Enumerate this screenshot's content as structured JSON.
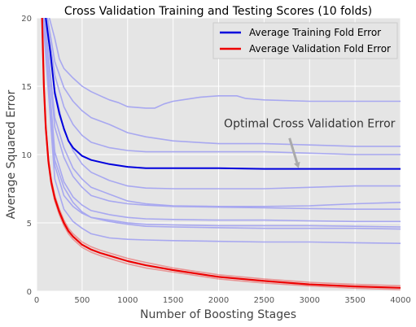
{
  "chart_data": {
    "type": "line",
    "title": "Cross Validation Training and Testing Scores (10 folds)",
    "xlabel": "Number of Boosting Stages",
    "ylabel": "Average Squared Error",
    "xlim": [
      0,
      4000
    ],
    "ylim": [
      0,
      20
    ],
    "x_ticks": [
      "0",
      "500",
      "1000",
      "1500",
      "2000",
      "2500",
      "3000",
      "3500",
      "4000"
    ],
    "y_ticks": [
      "0",
      "5",
      "10",
      "15",
      "20"
    ],
    "grid": true,
    "legend_position": "top-right",
    "legend": [
      {
        "label": "Average Training Fold Error",
        "color": "#0000dd"
      },
      {
        "label": "Average Validation Fold Error",
        "color": "#ee0000"
      }
    ],
    "annotation": {
      "text": "Optimal Cross Validation Error",
      "text_at": [
        3000,
        12
      ],
      "arrow_from": [
        2780,
        11.2
      ],
      "arrow_to": [
        2880,
        9.0
      ]
    },
    "colors": {
      "background": "#e5e5e5",
      "grid": "#ffffff",
      "fold_lines": "#a8a8f0",
      "training": "#0000dd",
      "validation": "#ee0000",
      "arrow": "#aaaaaa"
    },
    "series": [
      {
        "name": "Average Training Fold Error",
        "role": "training",
        "x": [
          100,
          150,
          200,
          250,
          300,
          350,
          400,
          500,
          600,
          800,
          1000,
          1200,
          1500,
          2000,
          2500,
          3000,
          3500,
          4000
        ],
        "values": [
          20,
          17.5,
          14.5,
          13.0,
          11.9,
          11.0,
          10.5,
          9.9,
          9.6,
          9.3,
          9.1,
          9.0,
          9.0,
          9.0,
          8.95,
          8.95,
          8.95,
          8.95
        ]
      },
      {
        "name": "Average Validation Fold Error",
        "role": "validation",
        "x": [
          60,
          80,
          100,
          130,
          160,
          200,
          250,
          300,
          350,
          400,
          500,
          600,
          700,
          800,
          1000,
          1200,
          1500,
          2000,
          2500,
          3000,
          3500,
          4000
        ],
        "values": [
          20,
          15,
          12,
          9.5,
          8.0,
          6.8,
          5.8,
          5.0,
          4.4,
          4.0,
          3.4,
          3.05,
          2.8,
          2.6,
          2.2,
          1.9,
          1.55,
          1.05,
          0.75,
          0.5,
          0.35,
          0.25
        ]
      },
      {
        "role": "validation-fold",
        "x": [
          60,
          80,
          100,
          130,
          160,
          200,
          250,
          300,
          350,
          400,
          500,
          600,
          700,
          800,
          1000,
          1200,
          1500,
          2000,
          2500,
          3000,
          3500,
          4000
        ],
        "values": [
          20,
          15.2,
          12.2,
          9.7,
          8.2,
          7.0,
          6.0,
          5.2,
          4.6,
          4.2,
          3.6,
          3.25,
          3.0,
          2.8,
          2.4,
          2.1,
          1.7,
          1.2,
          0.9,
          0.65,
          0.5,
          0.4
        ]
      },
      {
        "role": "validation-fold",
        "x": [
          60,
          80,
          100,
          130,
          160,
          200,
          250,
          300,
          350,
          400,
          500,
          600,
          700,
          800,
          1000,
          1200,
          1500,
          2000,
          2500,
          3000,
          3500,
          4000
        ],
        "values": [
          20,
          14.8,
          11.8,
          9.3,
          7.8,
          6.6,
          5.6,
          4.8,
          4.2,
          3.8,
          3.2,
          2.85,
          2.6,
          2.4,
          2.0,
          1.7,
          1.4,
          0.9,
          0.6,
          0.38,
          0.22,
          0.12
        ]
      },
      {
        "role": "training-fold",
        "x": [
          140,
          200,
          250,
          300,
          400,
          500,
          600,
          700,
          800,
          900,
          1000,
          1200,
          1300,
          1400,
          1500,
          1600,
          1800,
          2000,
          2200,
          2300,
          2500,
          3000,
          3500,
          4000
        ],
        "values": [
          20,
          18.5,
          17.0,
          16.3,
          15.6,
          15.0,
          14.6,
          14.3,
          14.0,
          13.8,
          13.5,
          13.4,
          13.4,
          13.7,
          13.9,
          14.0,
          14.2,
          14.3,
          14.3,
          14.1,
          14.0,
          13.9,
          13.9,
          13.9
        ]
      },
      {
        "role": "training-fold",
        "x": [
          120,
          200,
          300,
          400,
          500,
          600,
          800,
          1000,
          1200,
          1500,
          2000,
          2500,
          3000,
          3500,
          4000
        ],
        "values": [
          20,
          16.8,
          14.9,
          13.9,
          13.2,
          12.7,
          12.2,
          11.6,
          11.3,
          11.0,
          10.8,
          10.8,
          10.7,
          10.6,
          10.6
        ]
      },
      {
        "role": "training-fold",
        "x": [
          110,
          200,
          300,
          400,
          500,
          600,
          800,
          1000,
          1200,
          1500,
          2000,
          2500,
          3000,
          3500,
          4000
        ],
        "values": [
          20,
          15.8,
          13.5,
          12.2,
          11.4,
          10.9,
          10.5,
          10.3,
          10.2,
          10.2,
          10.2,
          10.2,
          10.1,
          10.0,
          10.0
        ]
      },
      {
        "role": "training-fold",
        "x": [
          100,
          200,
          300,
          400,
          500,
          600,
          800,
          1000,
          1200,
          1500,
          2000,
          2500,
          3000,
          3500,
          4000
        ],
        "values": [
          20,
          14.7,
          11.8,
          10.3,
          9.3,
          8.7,
          8.1,
          7.7,
          7.55,
          7.5,
          7.5,
          7.5,
          7.6,
          7.7,
          7.7
        ]
      },
      {
        "role": "training-fold",
        "x": [
          90,
          200,
          300,
          400,
          500,
          600,
          800,
          1000,
          1200,
          1500,
          2000,
          2500,
          3000,
          3500,
          4000
        ],
        "values": [
          20,
          12.7,
          10.5,
          9.0,
          8.2,
          7.6,
          7.1,
          6.6,
          6.4,
          6.25,
          6.2,
          6.2,
          6.25,
          6.4,
          6.5
        ]
      },
      {
        "role": "training-fold",
        "x": [
          85,
          200,
          300,
          400,
          500,
          600,
          800,
          1000,
          1200,
          1500,
          2000,
          2500,
          3000,
          3500,
          4000
        ],
        "values": [
          20,
          12.0,
          9.8,
          8.4,
          7.6,
          7.0,
          6.6,
          6.4,
          6.3,
          6.2,
          6.15,
          6.1,
          6.05,
          6.0,
          6.0
        ]
      },
      {
        "role": "training-fold",
        "x": [
          80,
          200,
          300,
          400,
          500,
          600,
          800,
          1000,
          1200,
          1500,
          2000,
          2500,
          3000,
          3500,
          4000
        ],
        "values": [
          20,
          10.2,
          8.0,
          6.9,
          6.3,
          5.9,
          5.6,
          5.4,
          5.3,
          5.25,
          5.2,
          5.2,
          5.15,
          5.1,
          5.1
        ]
      },
      {
        "role": "training-fold",
        "x": [
          75,
          200,
          300,
          400,
          500,
          600,
          800,
          1000,
          1200,
          1500,
          2000,
          2500,
          3000,
          3500,
          4000
        ],
        "values": [
          20,
          9.2,
          7.0,
          6.2,
          5.7,
          5.4,
          5.2,
          5.0,
          4.9,
          4.85,
          4.8,
          4.8,
          4.8,
          4.75,
          4.7
        ]
      },
      {
        "role": "training-fold",
        "x": [
          75,
          200,
          300,
          400,
          500,
          600,
          800,
          1000,
          1200,
          1500,
          2000,
          2500,
          3000,
          3500,
          4000
        ],
        "values": [
          20,
          9.6,
          7.6,
          6.5,
          5.8,
          5.4,
          5.1,
          4.9,
          4.75,
          4.7,
          4.65,
          4.6,
          4.6,
          4.6,
          4.55
        ]
      },
      {
        "role": "training-fold",
        "x": [
          70,
          200,
          300,
          400,
          500,
          600,
          800,
          1000,
          1200,
          1500,
          2000,
          2500,
          3000,
          3500,
          4000
        ],
        "values": [
          20,
          8.2,
          6.0,
          5.1,
          4.6,
          4.2,
          3.9,
          3.8,
          3.75,
          3.7,
          3.65,
          3.6,
          3.6,
          3.55,
          3.5
        ]
      }
    ]
  }
}
